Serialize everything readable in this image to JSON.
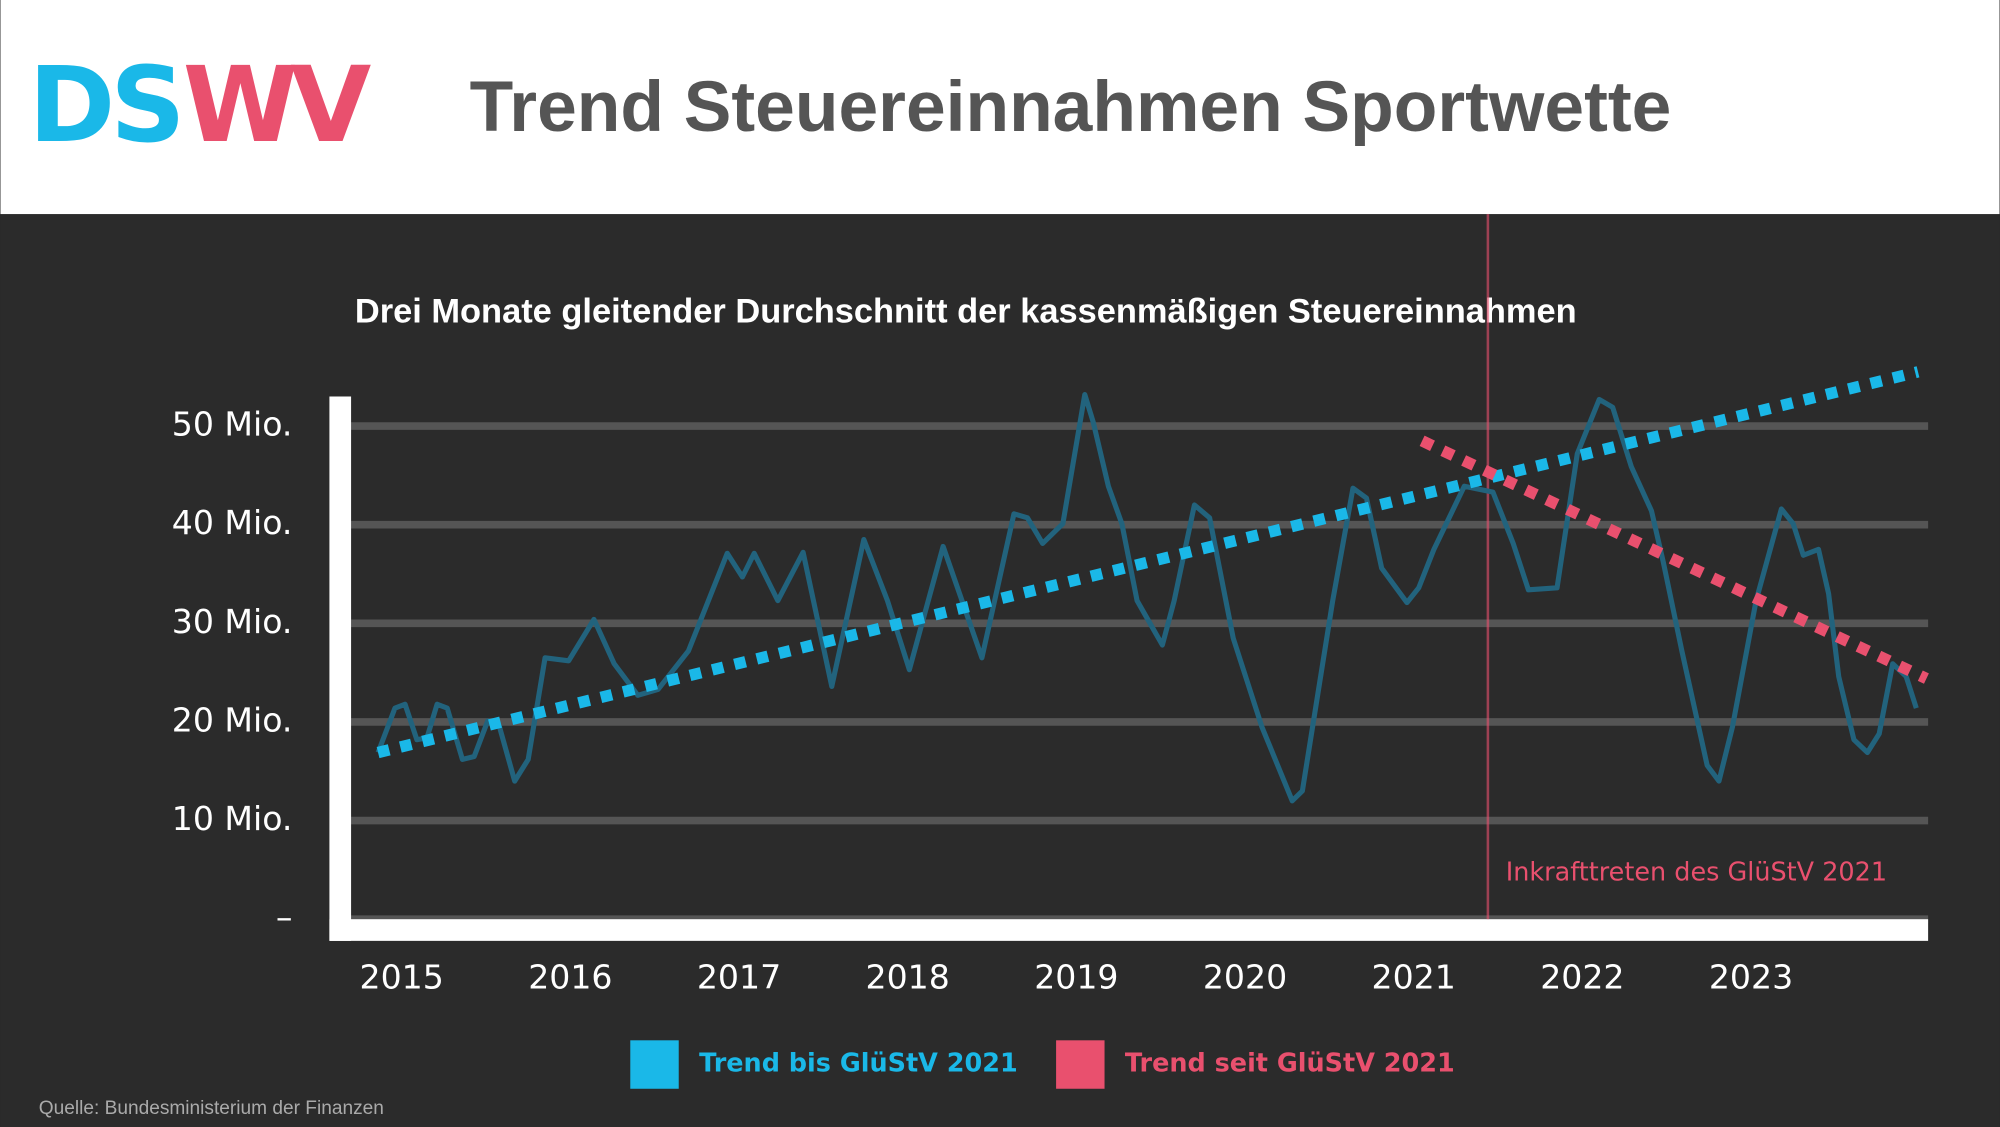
{
  "logo": {
    "left": "DS",
    "right": "WV",
    "left_color": "#1ab8e8",
    "right_color": "#e9506e"
  },
  "title": "Trend Steuereinnahmen Sportwette",
  "source": "Quelle: Bundesministerium der Finanzen",
  "chart_data": {
    "type": "line",
    "title": "Drei Monate gleitender Durchschnitt der kassenmäßigen Steuereinnahmen",
    "xlim": [
      2014.7,
      2024.05
    ],
    "xticks": [
      2015,
      2016,
      2017,
      2018,
      2019,
      2020,
      2021,
      2022,
      2023
    ],
    "ylim": [
      0,
      53
    ],
    "yticks": [
      {
        "value": 0,
        "label": "–"
      },
      {
        "value": 10,
        "label": "10 Mio."
      },
      {
        "value": 20,
        "label": "20 Mio."
      },
      {
        "value": 30,
        "label": "30 Mio."
      },
      {
        "value": 40,
        "label": "40 Mio."
      },
      {
        "value": 50,
        "label": "50 Mio."
      }
    ],
    "grid": true,
    "series": [
      {
        "color": "#22637d",
        "style": "solid",
        "x": [
          2014.86,
          2014.96,
          2015.02,
          2015.09,
          2015.15,
          2015.21,
          2015.27,
          2015.36,
          2015.43,
          2015.51,
          2015.58,
          2015.67,
          2015.75,
          2015.85,
          2015.99,
          2016.14,
          2016.26,
          2016.4,
          2016.52,
          2016.7,
          2016.93,
          2017.02,
          2017.09,
          2017.23,
          2017.38,
          2017.55,
          2017.74,
          2017.88,
          2018.01,
          2018.21,
          2018.44,
          2018.63,
          2018.71,
          2018.8,
          2018.92,
          2019.05,
          2019.1,
          2019.19,
          2019.27,
          2019.36,
          2019.51,
          2019.58,
          2019.7,
          2019.79,
          2019.93,
          2020.1,
          2020.28,
          2020.34,
          2020.52,
          2020.64,
          2020.72,
          2020.81,
          2020.96,
          2021.03,
          2021.12,
          2021.3,
          2021.47,
          2021.59,
          2021.68,
          2021.85,
          2021.97,
          2022.1,
          2022.18,
          2022.29,
          2022.41,
          2022.48,
          2022.59,
          2022.74,
          2022.81,
          2022.89,
          2023.03,
          2023.18,
          2023.25,
          2023.31,
          2023.4,
          2023.46,
          2023.52,
          2023.61,
          2023.69,
          2023.76,
          2023.84,
          2023.92,
          2023.98
        ],
        "values": [
          16.9,
          21.4,
          21.8,
          18.2,
          18.4,
          21.8,
          21.4,
          16.2,
          16.5,
          20.1,
          19.5,
          14.0,
          16.2,
          26.5,
          26.2,
          30.4,
          25.9,
          22.7,
          23.3,
          27.2,
          37.1,
          34.7,
          37.1,
          32.3,
          37.2,
          23.6,
          38.5,
          32.3,
          25.3,
          37.8,
          26.5,
          41.1,
          40.7,
          38.1,
          40.1,
          53.2,
          50.4,
          43.9,
          40.1,
          32.3,
          27.8,
          32.3,
          42.0,
          40.7,
          28.5,
          19.5,
          12.0,
          13.0,
          32.3,
          43.7,
          42.7,
          35.6,
          32.1,
          33.6,
          37.5,
          43.9,
          43.3,
          38.1,
          33.4,
          33.6,
          47.2,
          52.7,
          51.9,
          45.9,
          41.4,
          36.2,
          27.2,
          15.6,
          14.0,
          19.5,
          32.3,
          41.6,
          40.1,
          36.9,
          37.5,
          33.0,
          24.6,
          18.2,
          16.9,
          18.8,
          25.9,
          24.6,
          21.4
        ]
      },
      {
        "name": "Trend bis GlüStV 2021",
        "color": "#1ab8e8",
        "style": "dotted",
        "x": [
          2014.86,
          2023.99
        ],
        "values": [
          16.9,
          55.5
        ]
      },
      {
        "name": "Trend seit GlüStV 2021",
        "color": "#e9506e",
        "style": "dotted",
        "x": [
          2021.05,
          2024.04
        ],
        "values": [
          48.5,
          24.4
        ]
      }
    ],
    "annotation": {
      "x": 2021.44,
      "label": "Inkrafttreten des GlüStV 2021",
      "color": "#e9506e"
    }
  }
}
